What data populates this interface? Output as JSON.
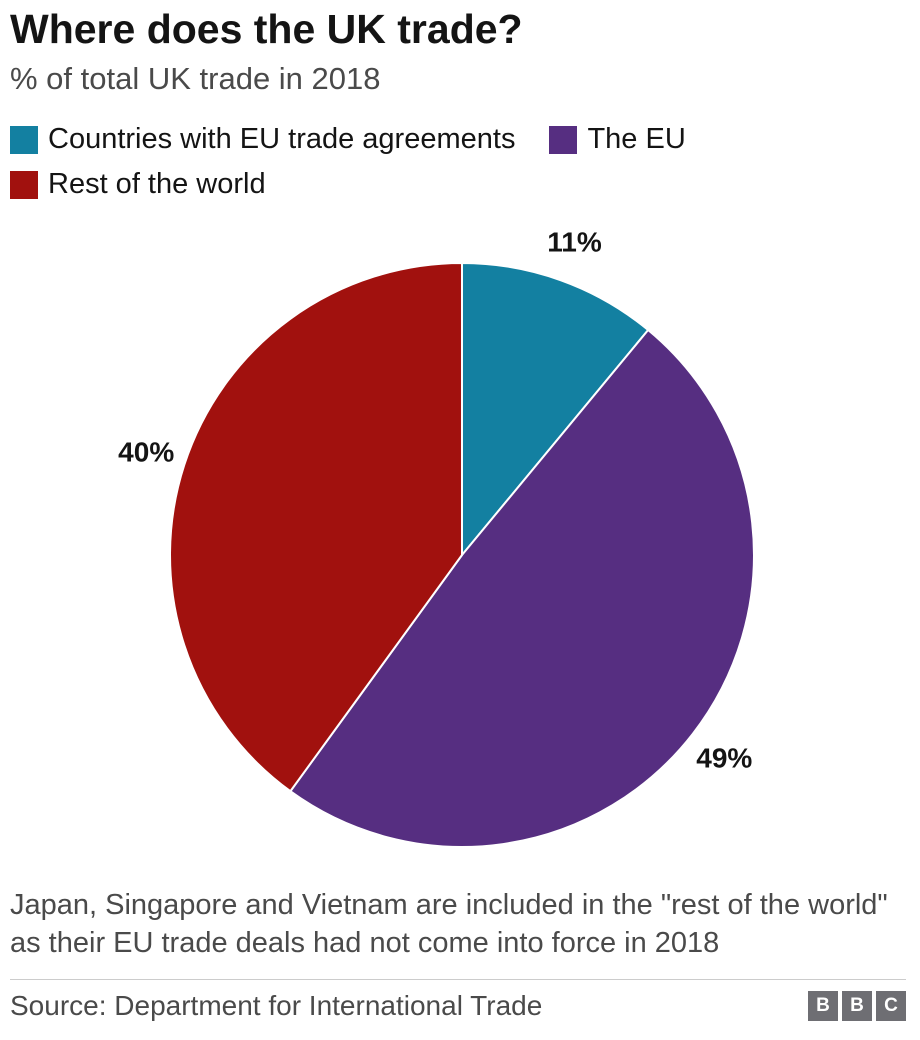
{
  "header": {
    "title": "Where does the UK trade?",
    "subtitle": "% of total UK trade in 2018"
  },
  "chart_data": {
    "type": "pie",
    "title": "Where does the UK trade?",
    "subtitle": "% of total UK trade in 2018",
    "unit": "%",
    "start_angle_deg": 0,
    "direction": "clockwise",
    "legend_position": "top",
    "slices": [
      {
        "label": "Countries with EU trade agreements",
        "value": 11,
        "data_label": "11%",
        "color": "#1380A1"
      },
      {
        "label": "The EU",
        "value": 49,
        "data_label": "49%",
        "color": "#562E81"
      },
      {
        "label": "Rest of the world",
        "value": 40,
        "data_label": "40%",
        "color": "#A1110E"
      }
    ]
  },
  "footer": {
    "note": "Japan, Singapore and Vietnam are included in the \"rest of the world\" as their EU trade deals had not come into force in 2018",
    "source": "Source: Department for International Trade",
    "logo_letters": [
      "B",
      "B",
      "C"
    ]
  }
}
